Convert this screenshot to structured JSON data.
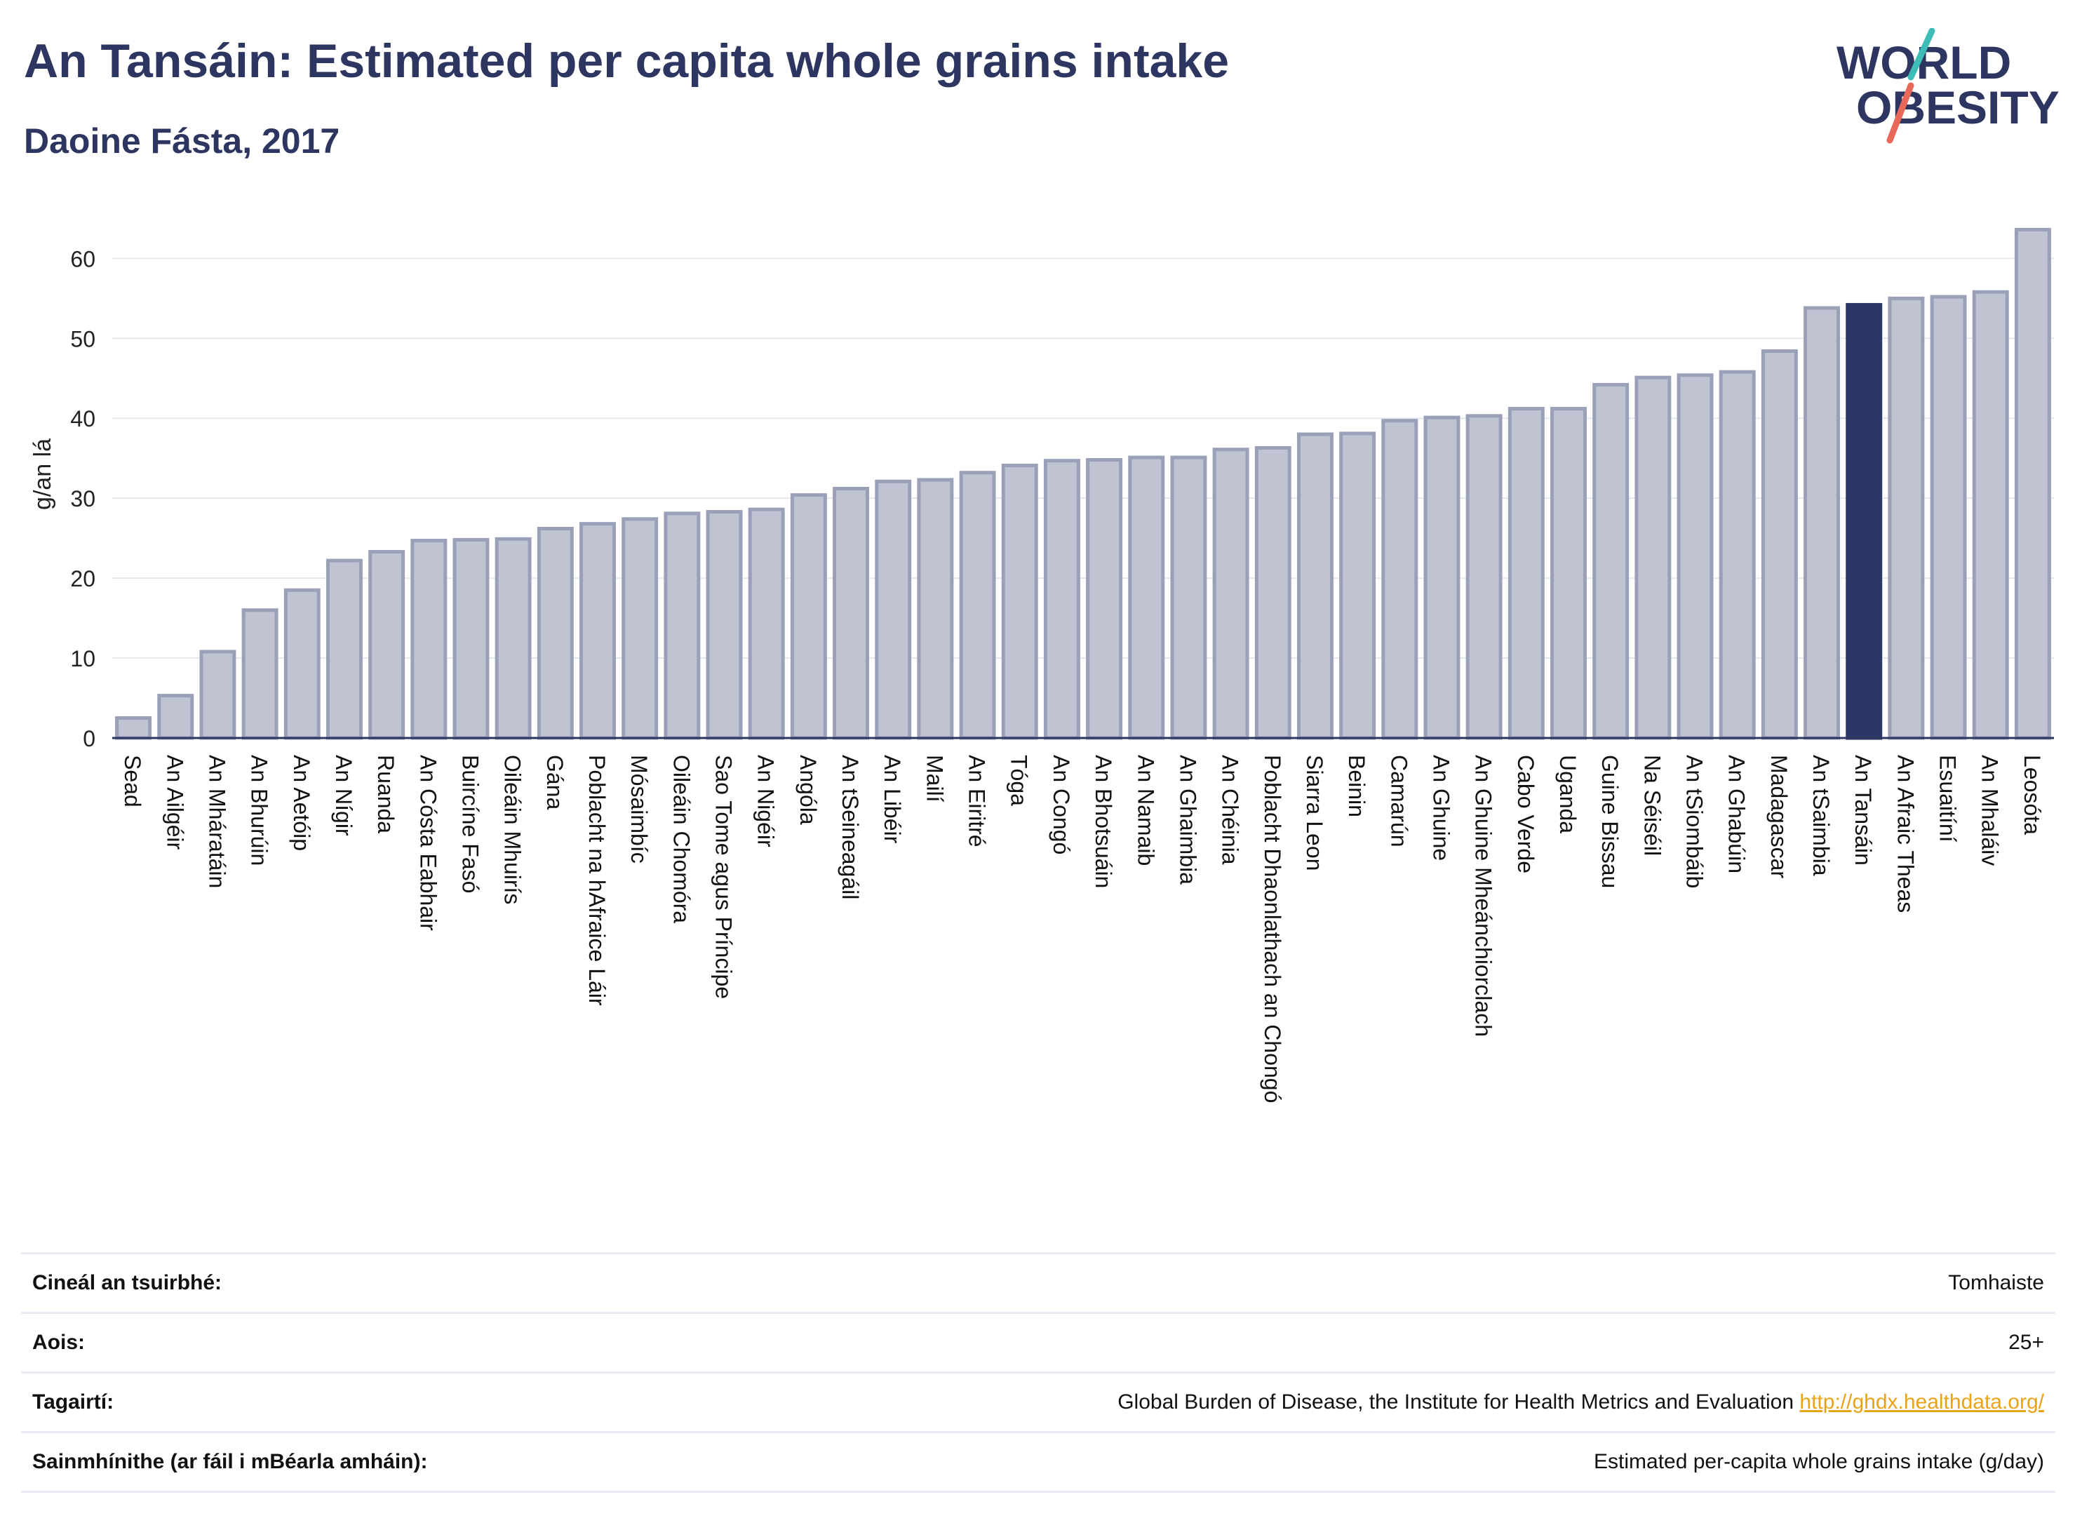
{
  "title": "An Tansáin: Estimated per capita whole grains intake",
  "subtitle": "Daoine Fásta, 2017",
  "logo": {
    "line1": "WORLD",
    "line2": "OBESITY"
  },
  "colors": {
    "bar": "#bfc3d2",
    "bar_stroke": "#9aa0b8",
    "highlight": "#2b3766",
    "text": "#2d3561",
    "link": "#e8a317"
  },
  "chart_data": {
    "type": "bar",
    "ylabel": "g/an lá",
    "ylim": [
      0,
      66
    ],
    "yticks": [
      0,
      10,
      20,
      30,
      40,
      50,
      60
    ],
    "grid": true,
    "highlight": "An Tansáin",
    "categories": [
      "Sead",
      "An Ailgéir",
      "An Mháratáin",
      "An Bhurúin",
      "An Aetóip",
      "An Nígir",
      "Ruanda",
      "An Cósta Eabhair",
      "Buircíne Fasó",
      "Oileáin Mhuirís",
      "Gána",
      "Poblacht na hAfraice Láir",
      "Mósaimbíc",
      "Oileáin Chomóra",
      "Sao Tome agus Príncipe",
      "An Nigéir",
      "Angóla",
      "An tSeineagáil",
      "An Libéir",
      "Mailí",
      "An Eiritré",
      "Tóga",
      "An Congó",
      "An Bhotsuáin",
      "An Namaib",
      "An Ghaimbia",
      "An Chéinia",
      "Poblacht Dhaonlathach an Chongó",
      "Siarra Leon",
      "Beinin",
      "Camarún",
      "An Ghuine",
      "An Ghuine Mheánchiorclach",
      "Cabo Verde",
      "Uganda",
      "Guine Bissau",
      "Na Séiséil",
      "An tSiombáib",
      "An Ghabúin",
      "Madagascar",
      "An tSaimbia",
      "An Tansáin",
      "An Afraic Theas",
      "Esuaitíní",
      "An Mhaláiv",
      "Leosóta"
    ],
    "values": [
      2.5,
      5.3,
      10.8,
      16.0,
      18.5,
      22.2,
      23.3,
      24.7,
      24.8,
      24.9,
      26.2,
      26.8,
      27.4,
      28.1,
      28.3,
      28.6,
      30.4,
      31.2,
      32.1,
      32.3,
      33.2,
      34.1,
      34.7,
      34.8,
      35.1,
      35.1,
      36.1,
      36.3,
      38.0,
      38.1,
      39.7,
      40.1,
      40.3,
      41.2,
      41.2,
      44.2,
      45.1,
      45.4,
      45.8,
      48.4,
      53.8,
      54.2,
      55.0,
      55.2,
      55.8,
      63.6
    ]
  },
  "footer": [
    {
      "label": "Cineál an tsuirbhé:",
      "value": "Tomhaiste"
    },
    {
      "label": "Aois:",
      "value": "25+"
    },
    {
      "label": "Tagairtí:",
      "value": "Global Burden of Disease, the Institute for Health Metrics and Evaluation",
      "link": "http://ghdx.healthdata.org/"
    },
    {
      "label": "Sainmhínithe (ar fáil i mBéarla amháin):",
      "value": "Estimated per-capita whole grains intake (g/day)"
    }
  ]
}
